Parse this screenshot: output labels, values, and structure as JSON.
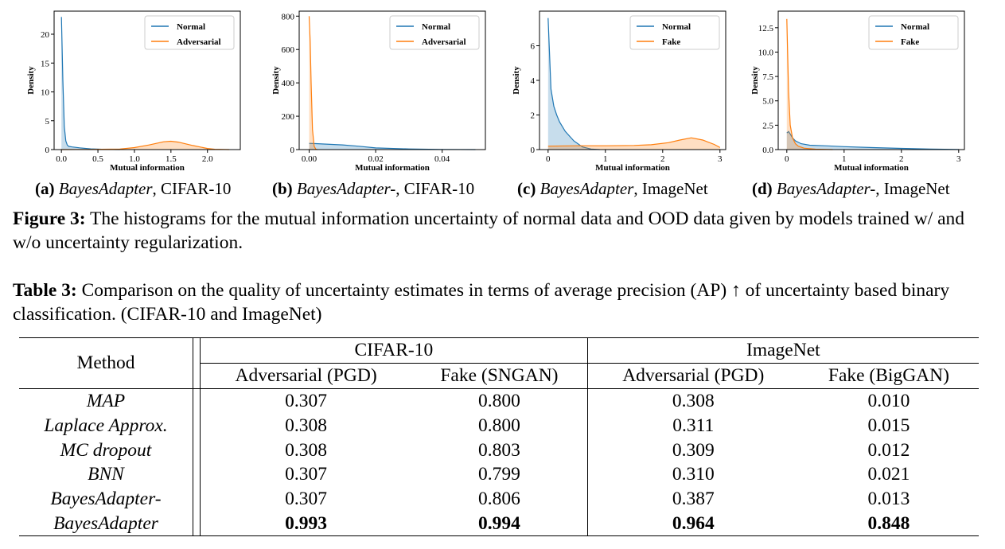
{
  "figure": {
    "caption_label": "Figure 3:",
    "caption_text": " The histograms for the mutual information uncertainty of normal data and OOD data given by models trained w/ and w/o uncertainty regularization.",
    "colors": {
      "normal": "#1f77b4",
      "ood": "#ff7f0e"
    }
  },
  "subcaptions": [
    {
      "label": "(a)",
      "model": "BayesAdapter",
      "dataset": ", CIFAR-10"
    },
    {
      "label": "(b)",
      "model": "BayesAdapter-",
      "dataset": ", CIFAR-10"
    },
    {
      "label": "(c)",
      "model": "BayesAdapter",
      "dataset": ", ImageNet"
    },
    {
      "label": "(d)",
      "model": "BayesAdapter-",
      "dataset": ", ImageNet"
    }
  ],
  "chart_data": [
    {
      "type": "area",
      "xlabel": "Mutual information",
      "ylabel": "Density",
      "xlim": [
        -0.1,
        2.45
      ],
      "ylim": [
        0,
        24
      ],
      "xticks": [
        0.0,
        0.5,
        1.0,
        1.5,
        2.0
      ],
      "xtick_labels": [
        "0.0",
        "0.5",
        "1.0",
        "1.5",
        "2.0"
      ],
      "yticks": [
        0,
        5,
        10,
        15,
        20
      ],
      "ytick_labels": [
        "0",
        "5",
        "10",
        "15",
        "20"
      ],
      "legend_position": "top-right",
      "grid": false,
      "series": [
        {
          "name": "Normal",
          "color": "#1f77b4",
          "x": [
            0.0,
            0.02,
            0.04,
            0.06,
            0.08,
            0.1,
            0.15,
            0.25,
            0.4,
            0.6,
            0.8
          ],
          "y": [
            23,
            12,
            4,
            1.5,
            0.8,
            0.55,
            0.45,
            0.3,
            0.12,
            0.03,
            0
          ]
        },
        {
          "name": "Adversarial",
          "color": "#ff7f0e",
          "x": [
            0.0,
            0.4,
            0.8,
            1.0,
            1.2,
            1.4,
            1.5,
            1.6,
            1.8,
            2.0,
            2.1,
            2.3
          ],
          "y": [
            0,
            0.03,
            0.1,
            0.35,
            0.8,
            1.35,
            1.45,
            1.3,
            0.7,
            0.2,
            0.05,
            0
          ]
        }
      ]
    },
    {
      "type": "area",
      "xlabel": "Mutual information",
      "ylabel": "Density",
      "xlim": [
        -0.003,
        0.053
      ],
      "ylim": [
        0,
        830
      ],
      "xticks": [
        0.0,
        0.02,
        0.04
      ],
      "xtick_labels": [
        "0.00",
        "0.02",
        "0.04"
      ],
      "yticks": [
        0,
        200,
        400,
        600,
        800
      ],
      "ytick_labels": [
        "0",
        "200",
        "400",
        "600",
        "800"
      ],
      "legend_position": "top-right",
      "grid": false,
      "series": [
        {
          "name": "Normal",
          "color": "#1f77b4",
          "x": [
            0.0,
            0.002,
            0.005,
            0.01,
            0.015,
            0.02,
            0.03,
            0.04,
            0.05
          ],
          "y": [
            37,
            36,
            33,
            28,
            20,
            10,
            4,
            1,
            0
          ]
        },
        {
          "name": "Adversarial",
          "color": "#ff7f0e",
          "x": [
            0.0,
            0.0003,
            0.0006,
            0.001,
            0.0015,
            0.002,
            0.0025
          ],
          "y": [
            800,
            650,
            400,
            120,
            20,
            2,
            0
          ]
        }
      ]
    },
    {
      "type": "area",
      "xlabel": "Mutual information",
      "ylabel": "Density",
      "xlim": [
        -0.15,
        3.1
      ],
      "ylim": [
        0,
        8.0
      ],
      "xticks": [
        0,
        1,
        2,
        3
      ],
      "xtick_labels": [
        "0",
        "1",
        "2",
        "3"
      ],
      "yticks": [
        0,
        2,
        4,
        6
      ],
      "ytick_labels": [
        "0",
        "2",
        "4",
        "6"
      ],
      "legend_position": "top-right",
      "grid": false,
      "series": [
        {
          "name": "Normal",
          "color": "#1f77b4",
          "x": [
            0.0,
            0.02,
            0.05,
            0.1,
            0.15,
            0.2,
            0.3,
            0.45,
            0.6,
            0.75,
            0.9
          ],
          "y": [
            7.6,
            6.0,
            3.5,
            2.5,
            2.0,
            1.6,
            1.05,
            0.5,
            0.15,
            0.03,
            0
          ]
        },
        {
          "name": "Fake",
          "color": "#ff7f0e",
          "x": [
            0.0,
            0.5,
            1.0,
            1.5,
            1.8,
            2.1,
            2.3,
            2.5,
            2.7,
            2.9,
            3.0
          ],
          "y": [
            0.2,
            0.22,
            0.22,
            0.24,
            0.28,
            0.4,
            0.55,
            0.68,
            0.55,
            0.3,
            0.12
          ]
        }
      ]
    },
    {
      "type": "area",
      "xlabel": "Mutual information",
      "ylabel": "Density",
      "xlim": [
        -0.15,
        3.1
      ],
      "ylim": [
        0,
        14.2
      ],
      "xticks": [
        0,
        1,
        2,
        3
      ],
      "xtick_labels": [
        "0",
        "1",
        "2",
        "3"
      ],
      "yticks": [
        0,
        2.5,
        5,
        7.5,
        10,
        12.5
      ],
      "ytick_labels": [
        "0.0",
        "2.5",
        "5.0",
        "7.5",
        "10.0",
        "12.5"
      ],
      "legend_position": "top-right",
      "grid": false,
      "series": [
        {
          "name": "Normal",
          "color": "#1f77b4",
          "x": [
            0.0,
            0.03,
            0.06,
            0.1,
            0.15,
            0.25,
            0.4,
            0.7,
            1.0,
            1.5,
            2.0,
            2.5,
            3.0
          ],
          "y": [
            1.7,
            1.85,
            1.6,
            1.2,
            0.9,
            0.6,
            0.45,
            0.38,
            0.3,
            0.2,
            0.12,
            0.05,
            0.02
          ]
        },
        {
          "name": "Fake",
          "color": "#ff7f0e",
          "x": [
            0.0,
            0.01,
            0.03,
            0.06,
            0.1,
            0.15,
            0.2,
            0.3,
            0.5,
            0.8
          ],
          "y": [
            13.4,
            11,
            6,
            2.5,
            1.2,
            0.6,
            0.35,
            0.15,
            0.04,
            0
          ]
        }
      ]
    }
  ],
  "table": {
    "caption_label": "Table 3:",
    "caption_text": " Comparison on the quality of uncertainty estimates in terms of average precision (AP) ↑ of uncertainty based binary classification. (CIFAR-10 and ImageNet)",
    "method_header": "Method",
    "groups": [
      "CIFAR-10",
      "ImageNet"
    ],
    "columns": [
      "Adversarial (PGD)",
      "Fake (SNGAN)",
      "Adversarial (PGD)",
      "Fake (BigGAN)"
    ],
    "rows": [
      {
        "method": "MAP",
        "values": [
          "0.307",
          "0.800",
          "0.308",
          "0.010"
        ]
      },
      {
        "method": "Laplace Approx.",
        "values": [
          "0.308",
          "0.800",
          "0.311",
          "0.015"
        ]
      },
      {
        "method": "MC dropout",
        "values": [
          "0.308",
          "0.803",
          "0.309",
          "0.012"
        ]
      },
      {
        "method": "BNN",
        "values": [
          "0.307",
          "0.799",
          "0.310",
          "0.021"
        ]
      },
      {
        "method": "BayesAdapter-",
        "values": [
          "0.307",
          "0.806",
          "0.387",
          "0.013"
        ]
      },
      {
        "method": "BayesAdapter",
        "values": [
          "0.993",
          "0.994",
          "0.964",
          "0.848"
        ]
      }
    ]
  }
}
